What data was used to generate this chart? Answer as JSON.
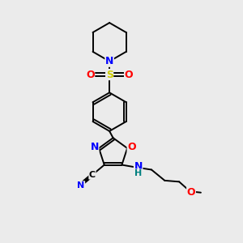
{
  "bg_color": "#ebebeb",
  "atom_colors": {
    "C": "#000000",
    "N": "#0000ff",
    "O": "#ff0000",
    "S": "#cccc00",
    "H": "#008080"
  },
  "bond_color": "#000000",
  "figsize": [
    3.0,
    3.0
  ],
  "dpi": 100
}
